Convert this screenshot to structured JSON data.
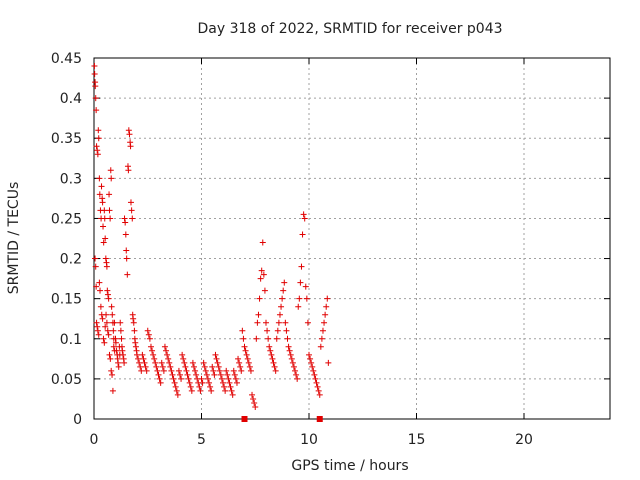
{
  "chart_data": {
    "type": "scatter",
    "title": "Day 318 of 2022, SRMTID for receiver p043",
    "xlabel": "GPS time / hours",
    "ylabel": "SRMTID / TECUs",
    "xlim": [
      0,
      24
    ],
    "ylim": [
      0,
      0.45
    ],
    "x_ticks": [
      "0",
      "5",
      "10",
      "15",
      "20"
    ],
    "y_ticks": [
      "0",
      "0.05",
      "0.1",
      "0.15",
      "0.2",
      "0.25",
      "0.3",
      "0.35",
      "0.4",
      "0.45"
    ],
    "x_tick_values": [
      0,
      5,
      10,
      15,
      20
    ],
    "y_tick_values": [
      0,
      0.05,
      0.1,
      0.15,
      0.2,
      0.25,
      0.3,
      0.35,
      0.4,
      0.45
    ],
    "grid": true,
    "marker": "+",
    "color": "#e00000",
    "series": [
      {
        "name": "p043",
        "points": [
          [
            0.02,
            0.44
          ],
          [
            0.03,
            0.43
          ],
          [
            0.05,
            0.42
          ],
          [
            0.06,
            0.415
          ],
          [
            0.08,
            0.4
          ],
          [
            0.1,
            0.385
          ],
          [
            0.12,
            0.34
          ],
          [
            0.15,
            0.335
          ],
          [
            0.18,
            0.33
          ],
          [
            0.2,
            0.36
          ],
          [
            0.22,
            0.35
          ],
          [
            0.25,
            0.3
          ],
          [
            0.27,
            0.28
          ],
          [
            0.3,
            0.26
          ],
          [
            0.33,
            0.25
          ],
          [
            0.35,
            0.29
          ],
          [
            0.38,
            0.275
          ],
          [
            0.4,
            0.27
          ],
          [
            0.42,
            0.24
          ],
          [
            0.45,
            0.22
          ],
          [
            0.48,
            0.26
          ],
          [
            0.5,
            0.25
          ],
          [
            0.52,
            0.225
          ],
          [
            0.55,
            0.2
          ],
          [
            0.58,
            0.195
          ],
          [
            0.6,
            0.19
          ],
          [
            0.62,
            0.16
          ],
          [
            0.65,
            0.155
          ],
          [
            0.68,
            0.15
          ],
          [
            0.7,
            0.28
          ],
          [
            0.72,
            0.26
          ],
          [
            0.75,
            0.25
          ],
          [
            0.78,
            0.31
          ],
          [
            0.8,
            0.3
          ],
          [
            0.82,
            0.14
          ],
          [
            0.85,
            0.13
          ],
          [
            0.88,
            0.12
          ],
          [
            0.9,
            0.11
          ],
          [
            0.92,
            0.1
          ],
          [
            0.95,
            0.12
          ],
          [
            0.05,
            0.2
          ],
          [
            0.08,
            0.19
          ],
          [
            0.1,
            0.165
          ],
          [
            0.12,
            0.12
          ],
          [
            0.15,
            0.115
          ],
          [
            0.18,
            0.11
          ],
          [
            0.22,
            0.105
          ],
          [
            0.25,
            0.17
          ],
          [
            0.28,
            0.16
          ],
          [
            0.32,
            0.14
          ],
          [
            0.36,
            0.13
          ],
          [
            0.4,
            0.125
          ],
          [
            0.44,
            0.1
          ],
          [
            0.48,
            0.095
          ],
          [
            0.52,
            0.115
          ],
          [
            0.56,
            0.13
          ],
          [
            0.6,
            0.12
          ],
          [
            0.64,
            0.11
          ],
          [
            0.68,
            0.105
          ],
          [
            0.72,
            0.08
          ],
          [
            0.76,
            0.075
          ],
          [
            0.8,
            0.06
          ],
          [
            0.84,
            0.055
          ],
          [
            0.88,
            0.035
          ],
          [
            0.92,
            0.09
          ],
          [
            0.96,
            0.085
          ],
          [
            1.0,
            0.1
          ],
          [
            1.02,
            0.095
          ],
          [
            1.05,
            0.085
          ],
          [
            1.08,
            0.08
          ],
          [
            1.1,
            0.075
          ],
          [
            1.12,
            0.07
          ],
          [
            1.15,
            0.065
          ],
          [
            1.18,
            0.09
          ],
          [
            1.2,
            0.08
          ],
          [
            1.22,
            0.12
          ],
          [
            1.25,
            0.11
          ],
          [
            1.28,
            0.1
          ],
          [
            1.3,
            0.09
          ],
          [
            1.32,
            0.085
          ],
          [
            1.35,
            0.08
          ],
          [
            1.38,
            0.075
          ],
          [
            1.4,
            0.07
          ],
          [
            1.42,
            0.25
          ],
          [
            1.45,
            0.245
          ],
          [
            1.48,
            0.23
          ],
          [
            1.5,
            0.21
          ],
          [
            1.52,
            0.2
          ],
          [
            1.55,
            0.18
          ],
          [
            1.58,
            0.315
          ],
          [
            1.6,
            0.31
          ],
          [
            1.62,
            0.36
          ],
          [
            1.65,
            0.355
          ],
          [
            1.68,
            0.345
          ],
          [
            1.7,
            0.34
          ],
          [
            1.72,
            0.27
          ],
          [
            1.75,
            0.26
          ],
          [
            1.78,
            0.25
          ],
          [
            1.8,
            0.13
          ],
          [
            1.82,
            0.125
          ],
          [
            1.85,
            0.12
          ],
          [
            1.88,
            0.11
          ],
          [
            1.9,
            0.1
          ],
          [
            1.92,
            0.095
          ],
          [
            1.95,
            0.09
          ],
          [
            1.98,
            0.085
          ],
          [
            2.0,
            0.08
          ],
          [
            2.05,
            0.075
          ],
          [
            2.1,
            0.07
          ],
          [
            2.15,
            0.065
          ],
          [
            2.2,
            0.06
          ],
          [
            2.25,
            0.08
          ],
          [
            2.3,
            0.075
          ],
          [
            2.35,
            0.07
          ],
          [
            2.4,
            0.065
          ],
          [
            2.45,
            0.06
          ],
          [
            2.5,
            0.11
          ],
          [
            2.55,
            0.105
          ],
          [
            2.6,
            0.1
          ],
          [
            2.65,
            0.09
          ],
          [
            2.7,
            0.085
          ],
          [
            2.75,
            0.08
          ],
          [
            2.8,
            0.075
          ],
          [
            2.85,
            0.07
          ],
          [
            2.9,
            0.065
          ],
          [
            2.95,
            0.06
          ],
          [
            3.0,
            0.055
          ],
          [
            3.05,
            0.05
          ],
          [
            3.1,
            0.045
          ],
          [
            3.15,
            0.07
          ],
          [
            3.2,
            0.065
          ],
          [
            3.25,
            0.06
          ],
          [
            3.3,
            0.09
          ],
          [
            3.35,
            0.085
          ],
          [
            3.4,
            0.08
          ],
          [
            3.45,
            0.075
          ],
          [
            3.5,
            0.07
          ],
          [
            3.55,
            0.065
          ],
          [
            3.6,
            0.06
          ],
          [
            3.65,
            0.055
          ],
          [
            3.7,
            0.05
          ],
          [
            3.75,
            0.045
          ],
          [
            3.8,
            0.04
          ],
          [
            3.85,
            0.035
          ],
          [
            3.9,
            0.03
          ],
          [
            3.95,
            0.06
          ],
          [
            4.0,
            0.055
          ],
          [
            4.05,
            0.05
          ],
          [
            4.1,
            0.08
          ],
          [
            4.15,
            0.075
          ],
          [
            4.2,
            0.07
          ],
          [
            4.25,
            0.065
          ],
          [
            4.3,
            0.06
          ],
          [
            4.35,
            0.055
          ],
          [
            4.4,
            0.05
          ],
          [
            4.45,
            0.045
          ],
          [
            4.5,
            0.04
          ],
          [
            4.55,
            0.035
          ],
          [
            4.6,
            0.07
          ],
          [
            4.65,
            0.065
          ],
          [
            4.7,
            0.06
          ],
          [
            4.75,
            0.055
          ],
          [
            4.8,
            0.05
          ],
          [
            4.85,
            0.045
          ],
          [
            4.9,
            0.04
          ],
          [
            4.95,
            0.035
          ],
          [
            5.0,
            0.05
          ],
          [
            5.05,
            0.045
          ],
          [
            5.1,
            0.07
          ],
          [
            5.15,
            0.065
          ],
          [
            5.2,
            0.06
          ],
          [
            5.25,
            0.055
          ],
          [
            5.3,
            0.05
          ],
          [
            5.35,
            0.045
          ],
          [
            5.4,
            0.04
          ],
          [
            5.45,
            0.035
          ],
          [
            5.5,
            0.065
          ],
          [
            5.55,
            0.06
          ],
          [
            5.6,
            0.055
          ],
          [
            5.65,
            0.08
          ],
          [
            5.7,
            0.075
          ],
          [
            5.75,
            0.07
          ],
          [
            5.8,
            0.065
          ],
          [
            5.85,
            0.06
          ],
          [
            5.9,
            0.055
          ],
          [
            5.95,
            0.05
          ],
          [
            6.0,
            0.045
          ],
          [
            6.05,
            0.04
          ],
          [
            6.1,
            0.035
          ],
          [
            6.15,
            0.06
          ],
          [
            6.2,
            0.055
          ],
          [
            6.25,
            0.05
          ],
          [
            6.3,
            0.045
          ],
          [
            6.35,
            0.04
          ],
          [
            6.4,
            0.035
          ],
          [
            6.45,
            0.03
          ],
          [
            6.5,
            0.06
          ],
          [
            6.55,
            0.055
          ],
          [
            6.6,
            0.05
          ],
          [
            6.65,
            0.045
          ],
          [
            6.7,
            0.075
          ],
          [
            6.75,
            0.07
          ],
          [
            6.8,
            0.065
          ],
          [
            6.85,
            0.06
          ],
          [
            6.9,
            0.11
          ],
          [
            6.95,
            0.1
          ],
          [
            7.0,
            0.09
          ],
          [
            7.05,
            0.085
          ],
          [
            7.1,
            0.08
          ],
          [
            7.15,
            0.075
          ],
          [
            7.2,
            0.07
          ],
          [
            7.25,
            0.065
          ],
          [
            7.3,
            0.06
          ],
          [
            7.35,
            0.03
          ],
          [
            7.4,
            0.025
          ],
          [
            7.45,
            0.02
          ],
          [
            7.5,
            0.015
          ],
          [
            7.55,
            0.1
          ],
          [
            7.6,
            0.12
          ],
          [
            7.65,
            0.13
          ],
          [
            7.7,
            0.15
          ],
          [
            7.75,
            0.175
          ],
          [
            7.8,
            0.185
          ],
          [
            7.85,
            0.22
          ],
          [
            7.9,
            0.18
          ],
          [
            7.95,
            0.16
          ],
          [
            8.0,
            0.12
          ],
          [
            8.05,
            0.11
          ],
          [
            8.1,
            0.1
          ],
          [
            8.15,
            0.09
          ],
          [
            8.2,
            0.085
          ],
          [
            8.25,
            0.08
          ],
          [
            8.3,
            0.075
          ],
          [
            8.35,
            0.07
          ],
          [
            8.4,
            0.065
          ],
          [
            8.45,
            0.06
          ],
          [
            8.5,
            0.1
          ],
          [
            8.55,
            0.11
          ],
          [
            8.6,
            0.12
          ],
          [
            8.65,
            0.13
          ],
          [
            8.7,
            0.14
          ],
          [
            8.75,
            0.15
          ],
          [
            8.8,
            0.16
          ],
          [
            8.85,
            0.17
          ],
          [
            8.9,
            0.12
          ],
          [
            8.95,
            0.11
          ],
          [
            9.0,
            0.1
          ],
          [
            9.05,
            0.09
          ],
          [
            9.1,
            0.085
          ],
          [
            9.15,
            0.08
          ],
          [
            9.2,
            0.075
          ],
          [
            9.25,
            0.07
          ],
          [
            9.3,
            0.065
          ],
          [
            9.35,
            0.06
          ],
          [
            9.4,
            0.055
          ],
          [
            9.45,
            0.05
          ],
          [
            9.5,
            0.14
          ],
          [
            9.55,
            0.15
          ],
          [
            9.6,
            0.17
          ],
          [
            9.65,
            0.19
          ],
          [
            9.7,
            0.23
          ],
          [
            9.75,
            0.255
          ],
          [
            9.8,
            0.25
          ],
          [
            9.85,
            0.165
          ],
          [
            9.9,
            0.15
          ],
          [
            9.95,
            0.12
          ],
          [
            10.0,
            0.08
          ],
          [
            10.05,
            0.075
          ],
          [
            10.1,
            0.07
          ],
          [
            10.15,
            0.065
          ],
          [
            10.2,
            0.06
          ],
          [
            10.25,
            0.055
          ],
          [
            10.3,
            0.05
          ],
          [
            10.35,
            0.045
          ],
          [
            10.4,
            0.04
          ],
          [
            10.45,
            0.035
          ],
          [
            10.5,
            0.03
          ],
          [
            10.55,
            0.09
          ],
          [
            10.6,
            0.1
          ],
          [
            10.65,
            0.11
          ],
          [
            10.7,
            0.12
          ],
          [
            10.75,
            0.13
          ],
          [
            10.8,
            0.14
          ],
          [
            10.85,
            0.15
          ],
          [
            10.9,
            0.07
          ]
        ]
      }
    ],
    "gap_markers_x": [
      7.0,
      10.5
    ]
  }
}
